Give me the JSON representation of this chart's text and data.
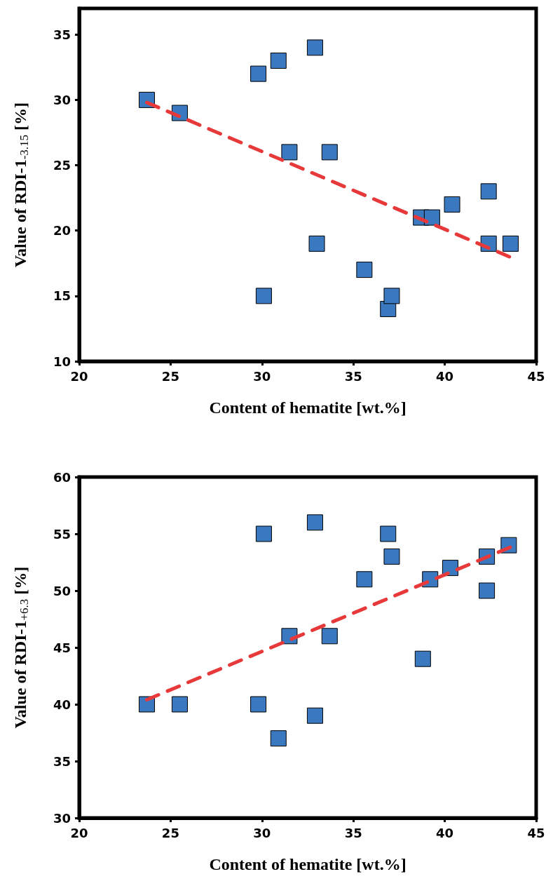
{
  "chart_data": [
    {
      "type": "scatter",
      "xlabel": "Content of hematite [wt.%]",
      "ylabel": "Value of RDI-1$_{-3.15}$ [%]",
      "xlim": [
        20,
        45
      ],
      "xticks": [
        20,
        25,
        30,
        35,
        40,
        45
      ],
      "ylim": [
        10,
        37
      ],
      "yticks": [
        10,
        15,
        20,
        25,
        30,
        35
      ],
      "grid": false,
      "marker": "square",
      "series": [
        {
          "color": "#3a78c0",
          "x": [
            23.7,
            25.5,
            29.8,
            30.9,
            32.9,
            31.5,
            33.7,
            33.0,
            30.1,
            35.6,
            36.9,
            37.1,
            38.7,
            39.3,
            40.4,
            42.4,
            42.4,
            43.6
          ],
          "values": [
            30,
            29,
            32,
            33,
            34,
            26,
            26,
            19,
            15,
            17,
            14,
            15,
            21,
            21,
            22,
            23,
            19,
            19
          ]
        },
        {
          "type": "line",
          "color": "#e8393a",
          "line_style": "dashed",
          "marker": "none",
          "x": [
            23.7,
            43.7
          ],
          "values": [
            29.8,
            17.9
          ]
        }
      ]
    },
    {
      "type": "scatter",
      "xlabel": "Content of hematite [wt.%]",
      "ylabel": "Value of RDI-1$_{+6.3}$ [%]",
      "xlim": [
        20,
        45
      ],
      "xticks": [
        20,
        25,
        30,
        35,
        40,
        45
      ],
      "ylim": [
        30,
        60
      ],
      "yticks": [
        30,
        35,
        40,
        45,
        50,
        55,
        60
      ],
      "grid": false,
      "marker": "square",
      "series": [
        {
          "color": "#3a78c0",
          "x": [
            23.7,
            25.5,
            29.8,
            30.9,
            32.9,
            30.1,
            32.9,
            31.5,
            33.7,
            35.6,
            36.9,
            37.1,
            38.8,
            39.2,
            40.3,
            42.3,
            42.3,
            43.5
          ],
          "values": [
            40,
            40,
            40,
            37,
            39,
            55,
            56,
            46,
            46,
            51,
            55,
            53,
            44,
            51,
            52,
            53,
            50,
            54
          ]
        },
        {
          "type": "line",
          "color": "#e8393a",
          "line_style": "dashed",
          "marker": "none",
          "x": [
            23.7,
            43.7
          ],
          "values": [
            40.4,
            53.9
          ]
        }
      ]
    }
  ]
}
